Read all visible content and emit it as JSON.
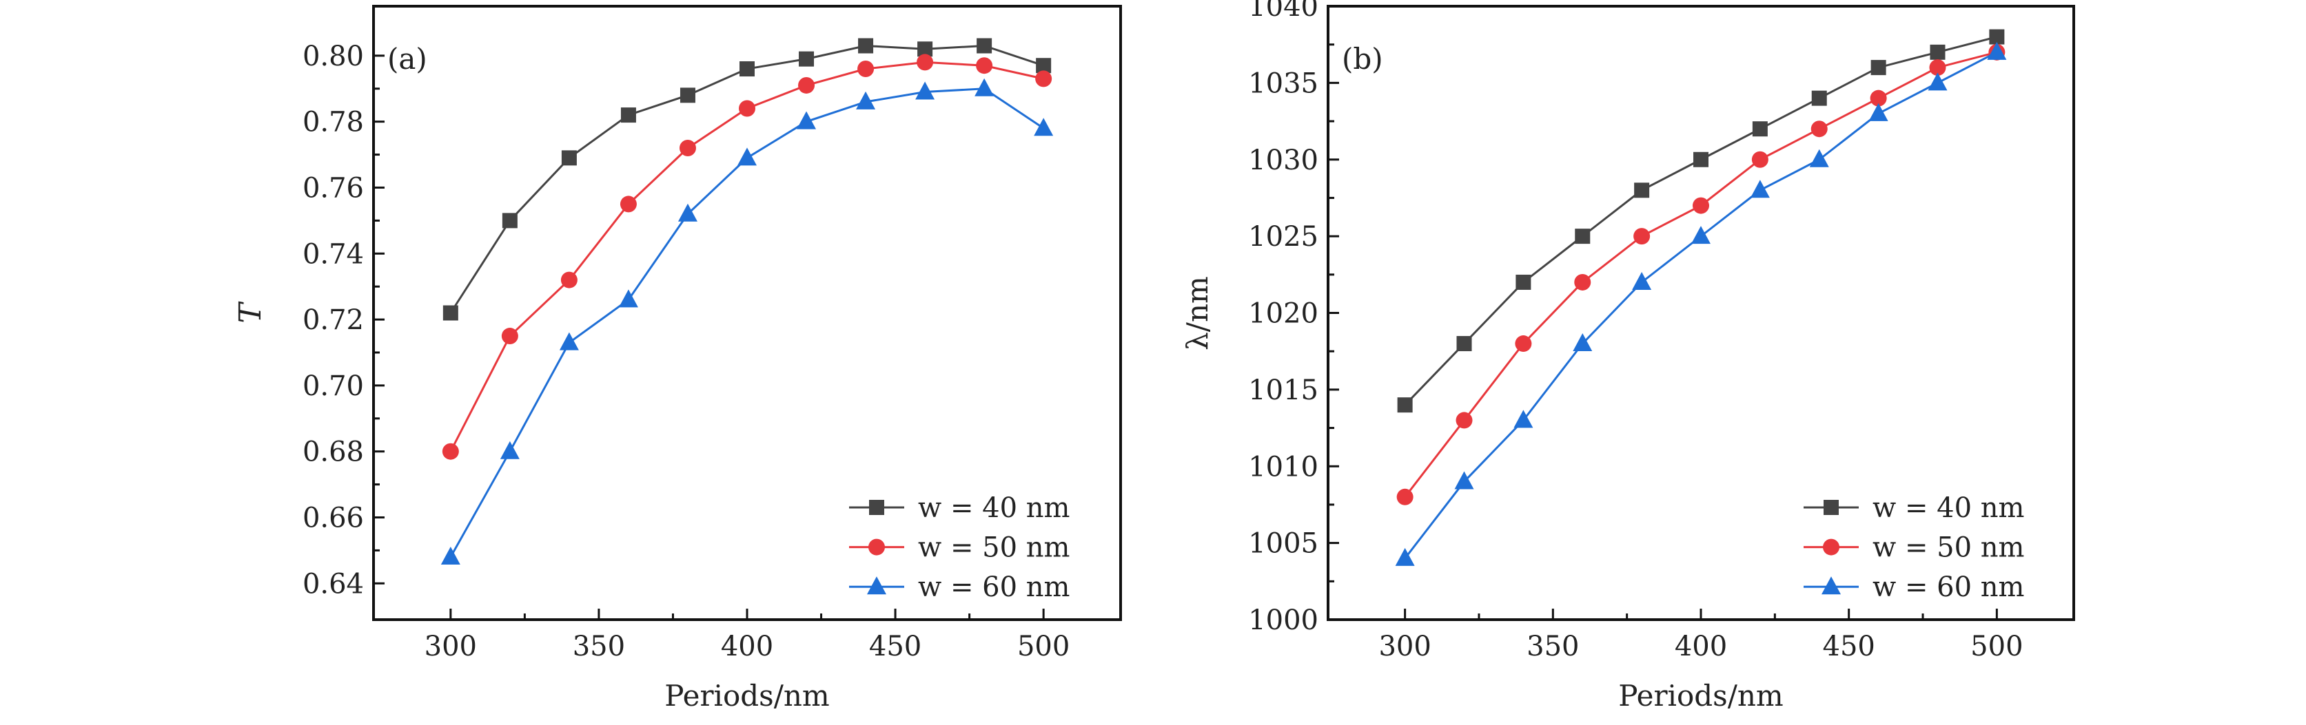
{
  "colors": {
    "w40": "#444444",
    "w50": "#e8383d",
    "w60": "#1f6fd6"
  },
  "chart_data": [
    {
      "type": "line",
      "panel_label": "(a)",
      "xlabel": "Periods/nm",
      "ylabel": "T",
      "xlim": [
        274,
        526
      ],
      "ylim": [
        0.629,
        0.815
      ],
      "xticks": [
        300,
        350,
        400,
        450,
        500
      ],
      "xtick_labels": [
        "300",
        "350",
        "400",
        "450",
        "500"
      ],
      "yticks": [
        0.64,
        0.66,
        0.68,
        0.7,
        0.72,
        0.74,
        0.76,
        0.78,
        0.8
      ],
      "ytick_labels": [
        "0.64",
        "0.66",
        "0.68",
        "0.70",
        "0.72",
        "0.74",
        "0.76",
        "0.78",
        "0.80"
      ],
      "legend_position": "bottom-right",
      "x": [
        300,
        320,
        340,
        360,
        380,
        400,
        420,
        440,
        460,
        480,
        500
      ],
      "series": [
        {
          "name": "w = 40 nm",
          "marker": "square",
          "color": "#444444",
          "values": [
            0.722,
            0.75,
            0.769,
            0.782,
            0.788,
            0.796,
            0.799,
            0.803,
            0.802,
            0.803,
            0.797
          ]
        },
        {
          "name": "w = 50 nm",
          "marker": "circle",
          "color": "#e8383d",
          "values": [
            0.68,
            0.715,
            0.732,
            0.755,
            0.772,
            0.784,
            0.791,
            0.796,
            0.798,
            0.797,
            0.793
          ]
        },
        {
          "name": "w = 60 nm",
          "marker": "triangle",
          "color": "#1f6fd6",
          "values": [
            0.648,
            0.68,
            0.713,
            0.726,
            0.752,
            0.769,
            0.78,
            0.786,
            0.789,
            0.79,
            0.778
          ]
        }
      ]
    },
    {
      "type": "line",
      "panel_label": "(b)",
      "xlabel": "Periods/nm",
      "ylabel": "λ/nm",
      "xlim": [
        274,
        526
      ],
      "ylim": [
        1000,
        1040
      ],
      "xticks": [
        300,
        350,
        400,
        450,
        500
      ],
      "xtick_labels": [
        "300",
        "350",
        "400",
        "450",
        "500"
      ],
      "yticks": [
        1000,
        1005,
        1010,
        1015,
        1020,
        1025,
        1030,
        1035,
        1040
      ],
      "ytick_labels": [
        "1000",
        "1005",
        "1010",
        "1015",
        "1020",
        "1025",
        "1030",
        "1035",
        "1040"
      ],
      "legend_position": "bottom-right",
      "x": [
        300,
        320,
        340,
        360,
        380,
        400,
        420,
        440,
        460,
        480,
        500
      ],
      "series": [
        {
          "name": "w = 40 nm",
          "marker": "square",
          "color": "#444444",
          "values": [
            1014,
            1018,
            1022,
            1025,
            1028,
            1030,
            1032,
            1034,
            1036,
            1037,
            1038
          ]
        },
        {
          "name": "w = 50 nm",
          "marker": "circle",
          "color": "#e8383d",
          "values": [
            1008,
            1013,
            1018,
            1022,
            1025,
            1027,
            1030,
            1032,
            1034,
            1036,
            1037
          ]
        },
        {
          "name": "w = 60 nm",
          "marker": "triangle",
          "color": "#1f6fd6",
          "values": [
            1004,
            1009,
            1013,
            1018,
            1022,
            1025,
            1028,
            1030,
            1033,
            1035,
            1037
          ]
        }
      ]
    }
  ]
}
